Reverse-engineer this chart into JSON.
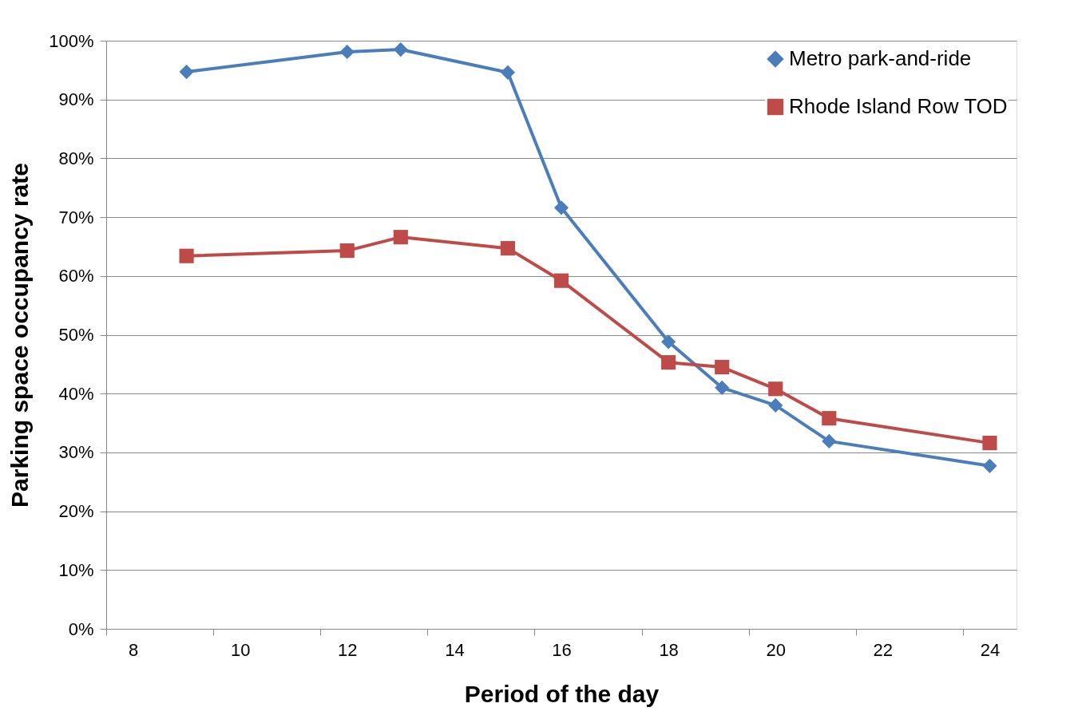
{
  "chart_data": {
    "type": "line",
    "xlabel": "Period of the day",
    "ylabel": "Parking space occupancy  rate",
    "x": [
      9,
      12,
      13,
      15,
      16,
      18,
      19,
      20,
      21,
      24
    ],
    "series": [
      {
        "name": "Metro park-and-ride",
        "color": "#4a7ebb",
        "marker": "diamond",
        "values": [
          94.7,
          98.1,
          98.5,
          94.6,
          71.6,
          48.8,
          41.0,
          38.0,
          31.9,
          27.7
        ]
      },
      {
        "name": "Rhode Island Row TOD",
        "color": "#be4b48",
        "marker": "square",
        "values": [
          63.4,
          64.3,
          66.6,
          64.7,
          59.2,
          45.3,
          44.5,
          40.8,
          35.8,
          31.6
        ]
      }
    ],
    "xlim": [
      7.5,
      24.5
    ],
    "xticks": [
      {
        "value": 7.5,
        "label": null
      },
      8,
      {
        "value": 9.5,
        "label": null
      },
      10,
      {
        "value": 11.5,
        "label": null
      },
      12,
      {
        "value": 13.5,
        "label": null
      },
      14,
      {
        "value": 15.5,
        "label": null
      },
      16,
      {
        "value": 17.5,
        "label": null
      },
      18,
      {
        "value": 19.5,
        "label": null
      },
      20,
      {
        "value": 21.5,
        "label": null
      },
      22,
      {
        "value": 23.5,
        "label": null
      },
      24
    ],
    "ylim": [
      0,
      100
    ],
    "yticks": [
      {
        "value": 0,
        "label": "0%"
      },
      {
        "value": 10,
        "label": "10%"
      },
      {
        "value": 20,
        "label": "20%"
      },
      {
        "value": 30,
        "label": "30%"
      },
      {
        "value": 40,
        "label": "40%"
      },
      {
        "value": 50,
        "label": "50%"
      },
      {
        "value": 60,
        "label": "60%"
      },
      {
        "value": 70,
        "label": "70%"
      },
      {
        "value": 80,
        "label": "80%"
      },
      {
        "value": 90,
        "label": "90%"
      },
      {
        "value": 100,
        "label": "100%"
      }
    ],
    "grid": "y",
    "legend": "top right",
    "line_style": "solid"
  }
}
